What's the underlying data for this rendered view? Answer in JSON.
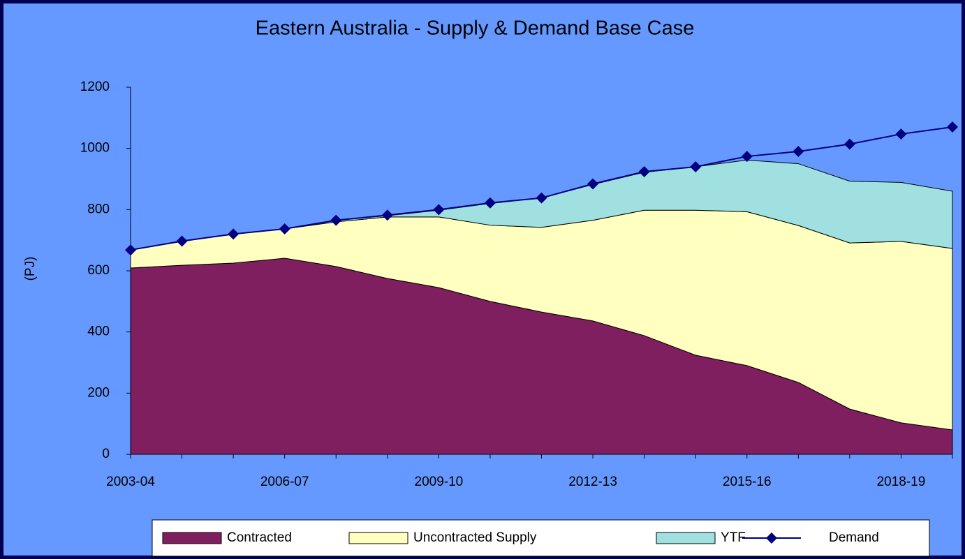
{
  "chart_data": {
    "type": "stacked-area-line",
    "title": "Eastern Australia - Supply & Demand Base Case",
    "y_label": "(PJ)",
    "categories": [
      "2003-04",
      null,
      null,
      "2006-07",
      null,
      null,
      "2009-10",
      null,
      null,
      "2012-13",
      null,
      null,
      "2015-16",
      null,
      null,
      "2018-19",
      null
    ],
    "series": [
      {
        "name": "Contracted",
        "color": "#7f1f5f",
        "kind": "area",
        "values": [
          609,
          618,
          625,
          641,
          614,
          575,
          545,
          500,
          465,
          436,
          388,
          324,
          290,
          235,
          148,
          103,
          80
        ]
      },
      {
        "name": "Uncontracted Supply",
        "color": "#ffffc0",
        "kind": "area",
        "values": [
          60,
          78,
          95,
          96,
          146,
          201,
          231,
          249,
          277,
          329,
          410,
          474,
          503,
          513,
          543,
          593,
          593
        ]
      },
      {
        "name": "YTF",
        "color": "#a0e0e0",
        "kind": "area",
        "values": [
          0,
          0,
          0,
          0,
          5,
          4,
          22,
          71,
          96,
          117,
          124,
          142,
          169,
          202,
          202,
          193,
          187
        ]
      },
      {
        "name": "Demand",
        "color": "#000080",
        "kind": "line",
        "values": [
          668,
          697,
          720,
          737,
          765,
          782,
          800,
          822,
          838,
          884,
          924,
          940,
          974,
          990,
          1014,
          1047,
          1070
        ]
      }
    ],
    "ylim": [
      0,
      1200
    ],
    "yticks": [
      0,
      200,
      400,
      600,
      800,
      1000,
      1200
    ],
    "legend": "bottom"
  }
}
